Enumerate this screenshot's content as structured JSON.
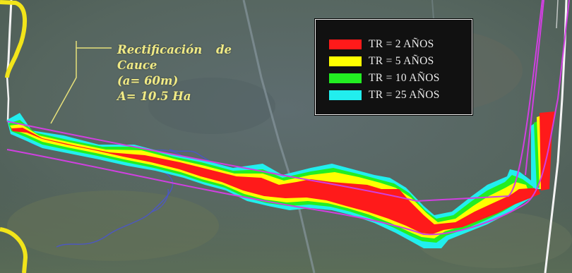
{
  "annotation": {
    "line1": "Rectificación de",
    "line2": "Cauce",
    "line3": "(a= 60m)",
    "line4": "A= 10.5 Ha"
  },
  "legend": {
    "items": [
      {
        "label": "TR = 2 AÑOS",
        "color": "#ff1a1a"
      },
      {
        "label": "TR = 5 AÑOS",
        "color": "#ffff00"
      },
      {
        "label": "TR = 10 AÑOS",
        "color": "#22ee22"
      },
      {
        "label": "TR = 25 AÑOS",
        "color": "#22eeee"
      }
    ]
  },
  "colors": {
    "channel_outline": "#d040e0",
    "river_trace": "#4a55d0",
    "road": "#f2e41a",
    "annotation_text": "#f0ea86",
    "terrain": "#55646a"
  }
}
